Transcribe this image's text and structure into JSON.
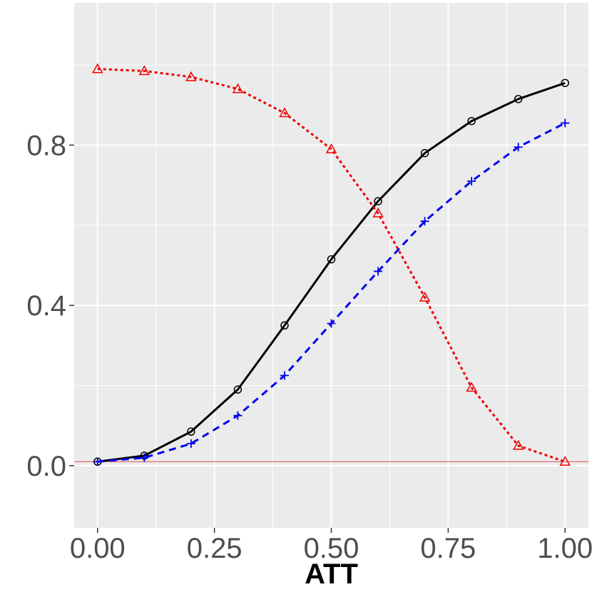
{
  "chart_data": {
    "type": "line",
    "title": "",
    "xlabel": "ATT",
    "ylabel": "",
    "xlim": [
      -0.05,
      1.05
    ],
    "ylim": [
      -0.155,
      1.155
    ],
    "x_ticks": [
      0.0,
      0.25,
      0.5,
      0.75,
      1.0
    ],
    "x_tick_labels": [
      "0.00",
      "0.25",
      "0.50",
      "0.75",
      "1.00"
    ],
    "y_ticks": [
      0.0,
      0.4,
      0.8
    ],
    "y_tick_labels": [
      "0.0",
      "0.4",
      "0.8"
    ],
    "grid": true,
    "legend": "none",
    "background": "#ebebeb",
    "reference_line": {
      "y": 0.01,
      "color": "#e05050"
    },
    "x": [
      0.0,
      0.1,
      0.2,
      0.3,
      0.4,
      0.5,
      0.6,
      0.7,
      0.8,
      0.9,
      1.0
    ],
    "series": [
      {
        "values": [
          0.01,
          0.025,
          0.085,
          0.19,
          0.35,
          0.515,
          0.66,
          0.78,
          0.86,
          0.915,
          0.955
        ],
        "color": "#000000",
        "dash": "solid",
        "marker": "circle"
      },
      {
        "values": [
          0.01,
          0.02,
          0.055,
          0.125,
          0.225,
          0.355,
          0.485,
          0.61,
          0.71,
          0.795,
          0.855
        ],
        "color": "#0000ee",
        "dash": "dashed",
        "marker": "plus"
      },
      {
        "values": [
          0.99,
          0.985,
          0.97,
          0.94,
          0.88,
          0.79,
          0.63,
          0.42,
          0.195,
          0.05,
          0.01
        ],
        "color": "#ee0000",
        "dash": "dotted",
        "marker": "triangle"
      }
    ]
  }
}
